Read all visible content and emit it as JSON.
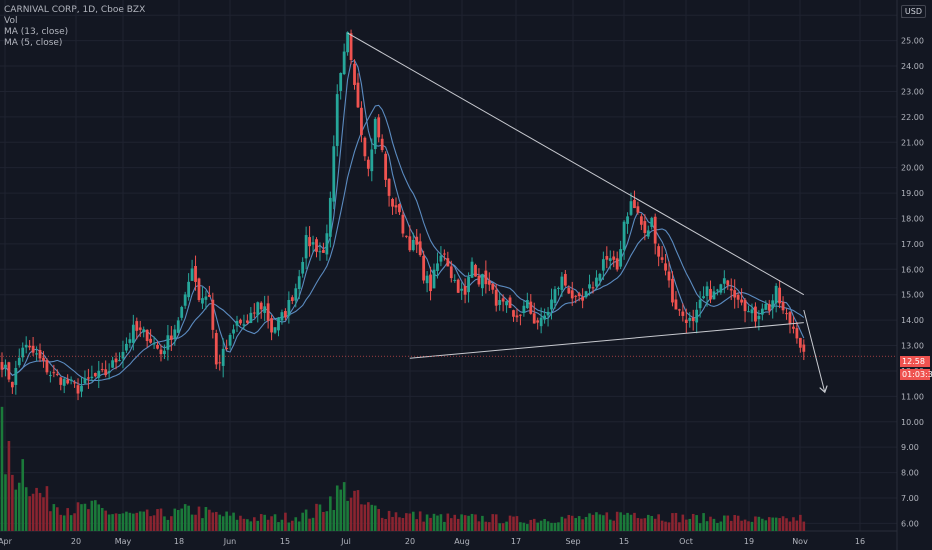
{
  "header": {
    "symbol_line": "CARNIVAL CORP, 1D, Cboe BZX",
    "vol_label": "Vol",
    "ma13_label": "MA (13, close)",
    "ma5_label": "MA (5, close)",
    "currency": "USD"
  },
  "price_tags": {
    "last_price": "12.58",
    "countdown": "01:03:31",
    "axis_top_partial": "2"
  },
  "colors": {
    "background": "#131722",
    "grid": "#1f2330",
    "up": "#26a69a",
    "down": "#ef5350",
    "vol_up": "#1b7a3a",
    "vol_down": "#8a2430",
    "ma": "#5b8bc0",
    "trendline": "#c8cad0"
  },
  "chart_data": {
    "type": "candlestick",
    "y_range": [
      5.7,
      26.6
    ],
    "y_ticks": [
      "6.00",
      "7.00",
      "8.00",
      "9.00",
      "10.00",
      "11.00",
      "12.00",
      "13.00",
      "14.00",
      "15.00",
      "16.00",
      "17.00",
      "18.00",
      "19.00",
      "20.00",
      "21.00",
      "22.00",
      "23.00",
      "24.00",
      "25.00",
      "26.00"
    ],
    "x_ticks": [
      "Apr",
      "20",
      "May",
      "18",
      "Jun",
      "15",
      "Jul",
      "20",
      "Aug",
      "17",
      "Sep",
      "15",
      "Oct",
      "19",
      "Nov",
      "16"
    ],
    "candle_close_path": [
      [
        0,
        12.3
      ],
      [
        3,
        11.5
      ],
      [
        6,
        13.0
      ],
      [
        10,
        12.6
      ],
      [
        14,
        11.9
      ],
      [
        18,
        11.6
      ],
      [
        22,
        11.3
      ],
      [
        26,
        11.7
      ],
      [
        30,
        11.9
      ],
      [
        34,
        12.6
      ],
      [
        38,
        13.6
      ],
      [
        42,
        13.4
      ],
      [
        46,
        12.7
      ],
      [
        50,
        13.7
      ],
      [
        53,
        14.8
      ],
      [
        55,
        16.2
      ],
      [
        57,
        14.9
      ],
      [
        60,
        15.0
      ],
      [
        62,
        12.2
      ],
      [
        65,
        12.9
      ],
      [
        68,
        13.9
      ],
      [
        71,
        13.8
      ],
      [
        74,
        14.6
      ],
      [
        76,
        14.5
      ],
      [
        78,
        13.6
      ],
      [
        82,
        14.3
      ],
      [
        85,
        15.3
      ],
      [
        88,
        17.1
      ],
      [
        90,
        17.0
      ],
      [
        93,
        16.6
      ],
      [
        95,
        18.6
      ],
      [
        97,
        22.7
      ],
      [
        100,
        25.2
      ],
      [
        102,
        23.5
      ],
      [
        104,
        21.5
      ],
      [
        106,
        19.9
      ],
      [
        108,
        21.8
      ],
      [
        110,
        20.6
      ],
      [
        112,
        18.7
      ],
      [
        114,
        18.5
      ],
      [
        116,
        17.6
      ],
      [
        118,
        17.0
      ],
      [
        120,
        16.9
      ],
      [
        122,
        15.8
      ],
      [
        124,
        15.3
      ],
      [
        126,
        16.2
      ],
      [
        128,
        16.7
      ],
      [
        130,
        15.8
      ],
      [
        132,
        15.3
      ],
      [
        134,
        14.9
      ],
      [
        136,
        16.3
      ],
      [
        138,
        15.6
      ],
      [
        140,
        15.6
      ],
      [
        142,
        15.0
      ],
      [
        144,
        14.6
      ],
      [
        146,
        14.5
      ],
      [
        148,
        14.0
      ],
      [
        150,
        14.3
      ],
      [
        152,
        14.6
      ],
      [
        154,
        14.0
      ],
      [
        156,
        13.9
      ],
      [
        158,
        14.4
      ],
      [
        160,
        15.1
      ],
      [
        162,
        15.6
      ],
      [
        164,
        15.2
      ],
      [
        166,
        14.7
      ],
      [
        168,
        14.7
      ],
      [
        170,
        15.2
      ],
      [
        172,
        15.6
      ],
      [
        174,
        16.4
      ],
      [
        176,
        16.3
      ],
      [
        178,
        16.0
      ],
      [
        180,
        17.9
      ],
      [
        182,
        18.6
      ],
      [
        184,
        18.2
      ],
      [
        186,
        17.3
      ],
      [
        188,
        17.9
      ],
      [
        190,
        16.6
      ],
      [
        192,
        16.1
      ],
      [
        194,
        14.8
      ],
      [
        196,
        14.3
      ],
      [
        198,
        14.1
      ],
      [
        200,
        13.8
      ],
      [
        202,
        14.6
      ],
      [
        204,
        15.1
      ],
      [
        206,
        15.0
      ],
      [
        208,
        15.3
      ],
      [
        210,
        15.6
      ],
      [
        212,
        15.1
      ],
      [
        214,
        14.9
      ],
      [
        216,
        14.3
      ],
      [
        218,
        14.1
      ],
      [
        220,
        14.6
      ],
      [
        222,
        14.5
      ],
      [
        224,
        15.1
      ],
      [
        226,
        14.3
      ],
      [
        228,
        13.9
      ],
      [
        230,
        13.5
      ],
      [
        232,
        12.6
      ]
    ],
    "volume_path": [
      [
        0,
        4.2
      ],
      [
        3,
        2.6
      ],
      [
        6,
        3.1
      ],
      [
        10,
        1.8
      ],
      [
        14,
        1.4
      ],
      [
        18,
        1.2
      ],
      [
        22,
        1.0
      ],
      [
        26,
        1.1
      ],
      [
        30,
        0.9
      ],
      [
        34,
        0.8
      ],
      [
        40,
        0.7
      ],
      [
        50,
        0.8
      ],
      [
        55,
        1.0
      ],
      [
        60,
        0.8
      ],
      [
        70,
        0.6
      ],
      [
        80,
        0.6
      ],
      [
        90,
        0.8
      ],
      [
        96,
        1.6
      ],
      [
        100,
        2.0
      ],
      [
        104,
        1.2
      ],
      [
        110,
        0.9
      ],
      [
        120,
        0.7
      ],
      [
        130,
        0.6
      ],
      [
        140,
        0.6
      ],
      [
        150,
        0.5
      ],
      [
        160,
        0.6
      ],
      [
        170,
        0.6
      ],
      [
        180,
        0.8
      ],
      [
        186,
        0.9
      ],
      [
        190,
        0.7
      ],
      [
        200,
        0.6
      ],
      [
        210,
        0.6
      ],
      [
        220,
        0.5
      ],
      [
        226,
        0.5
      ],
      [
        232,
        0.6
      ]
    ],
    "trendlines": [
      {
        "name": "upper",
        "from": [
          100,
          25.3
        ],
        "to": [
          232,
          15.0
        ]
      },
      {
        "name": "lower",
        "from": [
          118,
          12.5
        ],
        "to": [
          232,
          13.9
        ]
      },
      {
        "name": "arrow",
        "from": [
          232,
          14.4
        ],
        "to": [
          238,
          11.2
        ]
      }
    ]
  }
}
